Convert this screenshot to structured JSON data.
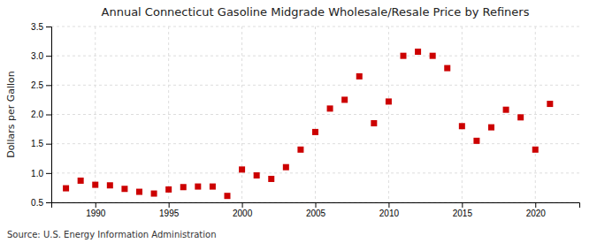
{
  "chart_data": {
    "type": "scatter",
    "title": "Annual Connecticut Gasoline Midgrade Wholesale/Resale Price by Refiners",
    "ylabel": "Dollars per Gallon",
    "source": "Source: U.S. Energy Information Administration",
    "x": [
      1988,
      1989,
      1990,
      1991,
      1992,
      1993,
      1994,
      1995,
      1996,
      1997,
      1998,
      1999,
      2000,
      2001,
      2002,
      2003,
      2004,
      2005,
      2006,
      2007,
      2008,
      2009,
      2010,
      2011,
      2012,
      2013,
      2014,
      2015,
      2016,
      2017,
      2018,
      2019,
      2020,
      2021
    ],
    "values": [
      0.74,
      0.87,
      0.8,
      0.79,
      0.73,
      0.68,
      0.65,
      0.72,
      0.76,
      0.77,
      0.77,
      0.61,
      1.06,
      0.96,
      0.9,
      1.1,
      1.4,
      1.7,
      2.1,
      2.25,
      2.65,
      1.85,
      2.22,
      3.0,
      3.07,
      3.0,
      2.79,
      1.8,
      1.55,
      1.78,
      2.08,
      1.95,
      1.4,
      2.18
    ],
    "color": "#cc0000",
    "marker": "square",
    "xlim": [
      1987,
      2023
    ],
    "ylim": [
      0.5,
      3.5
    ],
    "xticks": [
      1990,
      1995,
      2000,
      2005,
      2010,
      2015,
      2020
    ],
    "yticks": [
      0.5,
      {
        "value": 1.0,
        "label": "1.0"
      },
      1.5,
      {
        "value": 2.0,
        "label": "2.0"
      },
      2.5,
      {
        "value": 3.0,
        "label": "3.0"
      },
      3.5
    ],
    "grid": true
  }
}
